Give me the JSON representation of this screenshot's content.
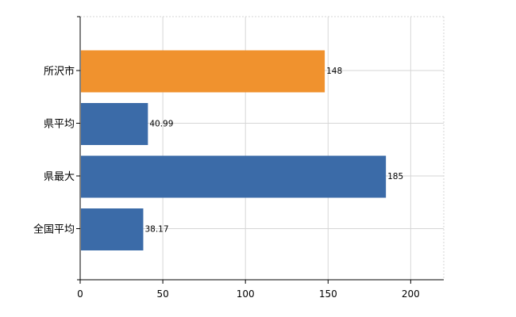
{
  "chart_data": {
    "type": "bar",
    "orientation": "horizontal",
    "categories": [
      "所沢市",
      "県平均",
      "県最大",
      "全国平均"
    ],
    "values": [
      148,
      40.99,
      185,
      38.17
    ],
    "data_labels": [
      "148",
      "40.99",
      "185",
      "38.17"
    ],
    "bar_colors": [
      "#f0922e",
      "#3b6ba8",
      "#3b6ba8",
      "#3b6ba8"
    ],
    "xlim": [
      0,
      220
    ],
    "x_ticks": [
      0,
      50,
      100,
      150,
      200
    ],
    "x_tick_labels": [
      "0",
      "50",
      "100",
      "150",
      "200"
    ],
    "grid": true,
    "title": "",
    "xlabel": "",
    "ylabel": ""
  }
}
